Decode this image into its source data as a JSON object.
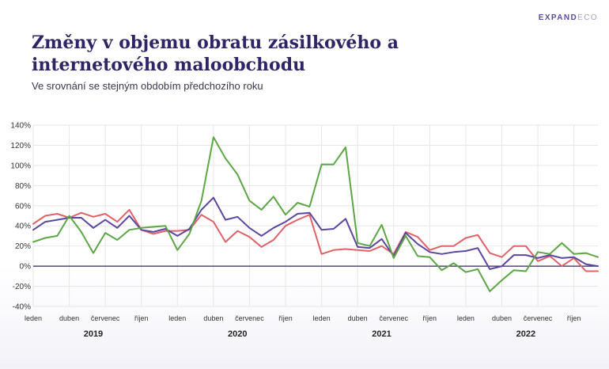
{
  "logo": {
    "primary": "EXPAND",
    "secondary": "ECO"
  },
  "title": "Změny v objemu obratu zásilkového a internetového maloobchodu",
  "subtitle": "Ve srovnání se stejným obdobím předchozího roku",
  "colors": {
    "title": "#2f2466",
    "zero_line": "#2f2466",
    "grid": "#e6e6e6"
  },
  "chart_data": {
    "type": "line",
    "x": [
      "2019-01",
      "2019-02",
      "2019-03",
      "2019-04",
      "2019-05",
      "2019-06",
      "2019-07",
      "2019-08",
      "2019-09",
      "2019-10",
      "2019-11",
      "2019-12",
      "2020-01",
      "2020-02",
      "2020-03",
      "2020-04",
      "2020-05",
      "2020-06",
      "2020-07",
      "2020-08",
      "2020-09",
      "2020-10",
      "2020-11",
      "2020-12",
      "2021-01",
      "2021-02",
      "2021-03",
      "2021-04",
      "2021-05",
      "2021-06",
      "2021-07",
      "2021-08",
      "2021-09",
      "2021-10",
      "2021-11",
      "2021-12",
      "2022-01",
      "2022-02",
      "2022-03",
      "2022-04",
      "2022-05",
      "2022-06",
      "2022-07",
      "2022-08",
      "2022-09",
      "2022-10",
      "2022-11",
      "2022-12"
    ],
    "x_tick_labels": [
      {
        "label": "leden",
        "month": "2019-01"
      },
      {
        "label": "duben",
        "month": "2019-04"
      },
      {
        "label": "červenec",
        "month": "2019-07"
      },
      {
        "label": "říjen",
        "month": "2019-10"
      },
      {
        "label": "leden",
        "month": "2020-01"
      },
      {
        "label": "duben",
        "month": "2020-04"
      },
      {
        "label": "červenec",
        "month": "2020-07"
      },
      {
        "label": "říjen",
        "month": "2020-10"
      },
      {
        "label": "leden",
        "month": "2021-01"
      },
      {
        "label": "duben",
        "month": "2021-04"
      },
      {
        "label": "červenec",
        "month": "2021-07"
      },
      {
        "label": "říjen",
        "month": "2021-10"
      },
      {
        "label": "leden",
        "month": "2022-01"
      },
      {
        "label": "duben",
        "month": "2022-04"
      },
      {
        "label": "červenec",
        "month": "2022-07"
      },
      {
        "label": "říjen",
        "month": "2022-10"
      }
    ],
    "year_labels": [
      {
        "label": "2019",
        "month": "2019-06"
      },
      {
        "label": "2020",
        "month": "2020-06"
      },
      {
        "label": "2021",
        "month": "2021-06"
      },
      {
        "label": "2022",
        "month": "2022-06"
      }
    ],
    "y_ticks": [
      -40,
      -20,
      0,
      20,
      40,
      60,
      80,
      100,
      120,
      140
    ],
    "y_tick_suffix": "%",
    "ylim": [
      -40,
      140
    ],
    "grid": true,
    "legend": "none",
    "series": [
      {
        "color": "#e06268",
        "values": [
          42,
          50,
          52,
          48,
          53,
          49,
          52,
          44,
          56,
          36,
          32,
          35,
          35,
          36,
          51,
          44,
          24,
          35,
          29,
          19,
          26,
          40,
          46,
          51,
          12,
          16,
          17,
          16,
          15,
          20,
          12,
          34,
          29,
          16,
          20,
          20,
          28,
          31,
          13,
          9,
          20,
          20,
          5,
          10,
          0,
          8,
          -5,
          -5
        ]
      },
      {
        "color": "#5c46a0",
        "values": [
          36,
          44,
          46,
          48,
          48,
          38,
          46,
          38,
          50,
          36,
          34,
          37,
          30,
          37,
          56,
          68,
          46,
          49,
          38,
          30,
          38,
          44,
          52,
          53,
          36,
          37,
          47,
          19,
          18,
          27,
          10,
          33,
          22,
          14,
          12,
          14,
          15,
          18,
          -3,
          0,
          11,
          11,
          8,
          11,
          8,
          9,
          2,
          0
        ]
      },
      {
        "color": "#5da646",
        "values": [
          24,
          28,
          30,
          50,
          34,
          13,
          33,
          26,
          36,
          38,
          39,
          40,
          16,
          32,
          65,
          128,
          107,
          91,
          65,
          56,
          69,
          51,
          63,
          59,
          101,
          101,
          118,
          23,
          20,
          41,
          8,
          30,
          10,
          9,
          -4,
          3,
          -6,
          -3,
          -25,
          -14,
          -4,
          -5,
          14,
          12,
          23,
          12,
          13,
          9
        ]
      }
    ]
  }
}
